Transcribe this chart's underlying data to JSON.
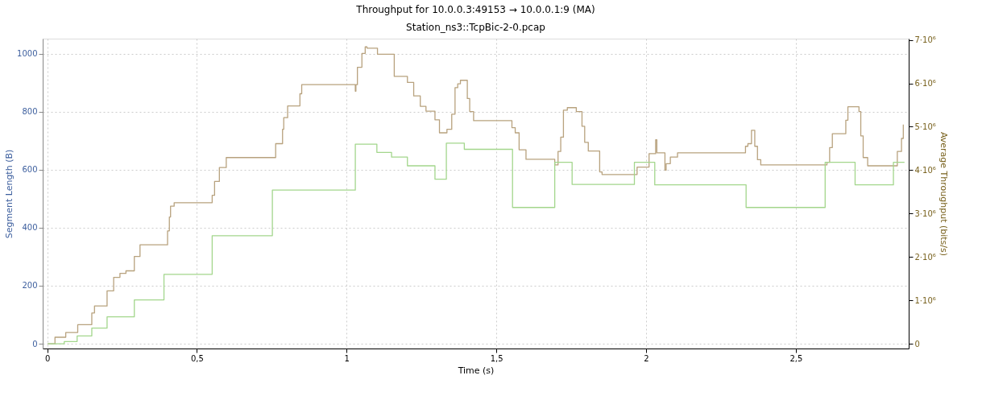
{
  "chart_data": {
    "type": "step",
    "title": "Throughput for 10.0.0.3:49153 → 10.0.0.1:9 (MA)",
    "subtitle": "Station_ns3::TcpBic-2-0.pcap",
    "xlabel": "Time (s)",
    "ylabel": "Segment Length (B)",
    "y2label": "Average Throughput (bits/s)",
    "xlim": [
      -0.015,
      2.877
    ],
    "xticks": [
      0,
      {
        "value": 0.5,
        "label": "0,5"
      },
      1,
      {
        "value": 1.5,
        "label": "1,5"
      },
      2,
      {
        "value": 2.5,
        "label": "2,5"
      }
    ],
    "ylim": [
      -16.5,
      1052
    ],
    "yticks": [
      0,
      200,
      400,
      600,
      800,
      1000
    ],
    "y2lim": [
      -110000,
      7030000
    ],
    "y2ticks": [
      0,
      {
        "value": 1000000,
        "label": "1·10⁶"
      },
      {
        "value": 2000000,
        "label": "2·10⁶"
      },
      {
        "value": 3000000,
        "label": "3·10⁶"
      },
      {
        "value": 4000000,
        "label": "4·10⁶"
      },
      {
        "value": 5000000,
        "label": "5·10⁶"
      },
      {
        "value": 6000000,
        "label": "6·10⁶"
      },
      {
        "value": 7000000,
        "label": "7·10⁶"
      }
    ],
    "grid": true,
    "legend": false,
    "marker": "none",
    "line_style": "solid",
    "series": [
      {
        "color": "#b8a27e",
        "axis": "y2",
        "x": [
          0.002,
          0.026,
          0.062,
          0.102,
          0.149,
          0.158,
          0.2,
          0.222,
          0.243,
          0.263,
          0.291,
          0.31,
          0.402,
          0.408,
          0.412,
          0.424,
          0.551,
          0.559,
          0.575,
          0.598,
          0.763,
          0.786,
          0.79,
          0.803,
          0.844,
          0.85,
          1.029,
          1.031,
          1.036,
          1.051,
          1.062,
          1.068,
          1.103,
          1.159,
          1.203,
          1.224,
          1.246,
          1.265,
          1.295,
          1.31,
          1.335,
          1.351,
          1.362,
          1.371,
          1.38,
          1.403,
          1.411,
          1.424,
          1.552,
          1.563,
          1.576,
          1.599,
          1.695,
          1.706,
          1.715,
          1.724,
          1.737,
          1.767,
          1.786,
          1.795,
          1.807,
          1.845,
          1.853,
          1.97,
          2.01,
          2.032,
          2.036,
          2.063,
          2.067,
          2.081,
          2.105,
          2.332,
          2.34,
          2.352,
          2.363,
          2.372,
          2.383,
          2.604,
          2.613,
          2.622,
          2.667,
          2.674,
          2.711,
          2.717,
          2.725,
          2.74,
          2.839,
          2.853,
          2.859
        ],
        "values": [
          0,
          150000,
          260000,
          440000,
          710000,
          870000,
          1220000,
          1530000,
          1620000,
          1680000,
          2010000,
          2280000,
          2600000,
          2920000,
          3170000,
          3250000,
          3420000,
          3740000,
          4060000,
          4290000,
          4610000,
          4940000,
          5210000,
          5480000,
          5760000,
          5970000,
          5820000,
          5970000,
          6370000,
          6690000,
          6840000,
          6810000,
          6670000,
          6160000,
          6020000,
          5710000,
          5470000,
          5360000,
          5160000,
          4860000,
          4940000,
          5290000,
          5900000,
          5990000,
          6070000,
          5650000,
          5350000,
          5140000,
          4980000,
          4860000,
          4470000,
          4250000,
          4120000,
          4430000,
          4760000,
          5380000,
          5440000,
          5350000,
          5010000,
          4640000,
          4440000,
          3960000,
          3900000,
          4070000,
          4380000,
          4700000,
          4400000,
          4000000,
          4150000,
          4300000,
          4400000,
          4550000,
          4610000,
          4920000,
          4550000,
          4240000,
          4120000,
          4180000,
          4520000,
          4840000,
          5150000,
          5460000,
          5350000,
          4790000,
          4290000,
          4100000,
          4430000,
          4730000,
          5050000
        ]
      },
      {
        "color": "#a3d68c",
        "axis": "y2",
        "x": [
          0.002,
          0.057,
          0.1,
          0.149,
          0.2,
          0.291,
          0.39,
          0.551,
          0.752,
          1.029,
          1.101,
          1.15,
          1.203,
          1.295,
          1.333,
          1.393,
          1.554,
          1.695,
          1.753,
          1.961,
          2.029,
          2.334,
          2.598,
          2.698,
          2.826,
          2.863
        ],
        "values": [
          0,
          50000,
          180000,
          360000,
          620000,
          1010000,
          1600000,
          2490000,
          3540000,
          4600000,
          4410000,
          4300000,
          4100000,
          3790000,
          4620000,
          4480000,
          3140000,
          4180000,
          3670000,
          4180000,
          3660000,
          3140000,
          4180000,
          3660000,
          4180000,
          4180000
        ]
      }
    ]
  }
}
